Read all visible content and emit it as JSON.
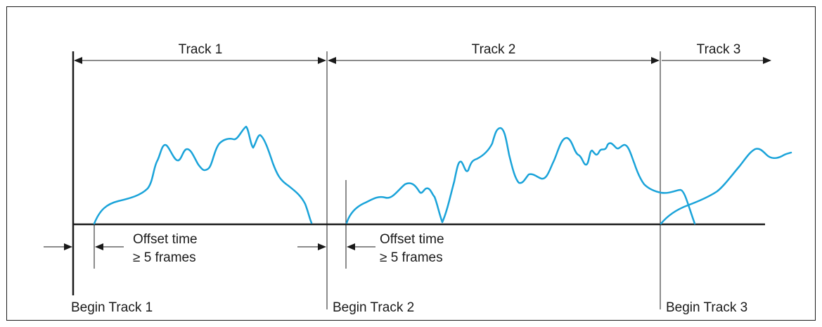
{
  "colors": {
    "frame": "#1a1a1a",
    "line": "#1a1a1a",
    "waveform": "#1aa3d9",
    "background": "#ffffff"
  },
  "tracks": [
    {
      "label": "Track 1"
    },
    {
      "label": "Track 2"
    },
    {
      "label": "Track 3"
    }
  ],
  "begin_labels": [
    "Begin Track 1",
    "Begin Track 2",
    "Begin Track 3"
  ],
  "offsets": [
    {
      "line1": "Offset time",
      "line2": "≥ 5 frames"
    },
    {
      "line1": "Offset time",
      "line2": "≥ 5 frames"
    }
  ]
}
